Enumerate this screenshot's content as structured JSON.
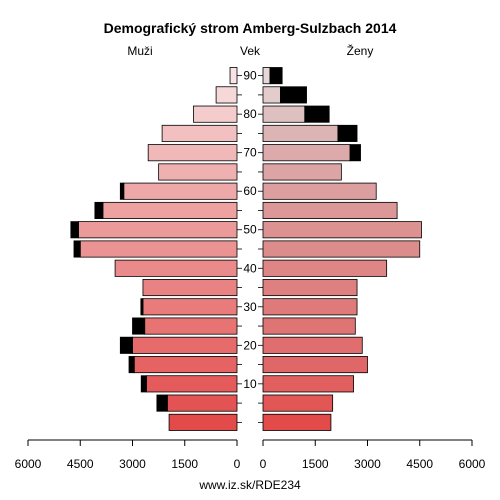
{
  "chart_data": {
    "type": "bar",
    "title": "Demografický strom Amberg-Sulzbach 2014",
    "left_label": "Muži",
    "center_label": "Vek",
    "right_label": "Ženy",
    "source": "www.iz.sk/RDE234",
    "xlim": [
      0,
      6000
    ],
    "x_ticks_left": [
      "6000",
      "4500",
      "3000",
      "1500",
      "0"
    ],
    "x_ticks_right": [
      "0",
      "1500",
      "3000",
      "4500",
      "6000"
    ],
    "x_tick_values": [
      6000,
      4500,
      3000,
      1500,
      0
    ],
    "age_labels": [
      "10",
      "20",
      "30",
      "40",
      "50",
      "60",
      "70",
      "80",
      "90"
    ],
    "age_groups_start": [
      0,
      5,
      10,
      15,
      20,
      25,
      30,
      35,
      40,
      45,
      50,
      55,
      60,
      65,
      70,
      75,
      80,
      85,
      90
    ],
    "males_base": [
      1950,
      2000,
      2600,
      2950,
      3000,
      2650,
      2700,
      2700,
      3500,
      4500,
      4550,
      3850,
      3250,
      2250,
      2550,
      2150,
      1250,
      600,
      200
    ],
    "males_extra": [
      0,
      300,
      150,
      150,
      350,
      350,
      60,
      0,
      0,
      180,
      220,
      230,
      100,
      0,
      0,
      0,
      0,
      0,
      0
    ],
    "females_base": [
      1950,
      2000,
      2600,
      3000,
      2850,
      2650,
      2700,
      2700,
      3550,
      4500,
      4550,
      3850,
      3250,
      2250,
      2500,
      2150,
      1200,
      500,
      200
    ],
    "females_extra": [
      0,
      0,
      0,
      0,
      0,
      0,
      0,
      0,
      0,
      0,
      0,
      0,
      0,
      0,
      300,
      550,
      700,
      750,
      350
    ],
    "extra_color": "#000000",
    "colors": [
      "#e34a4a",
      "#e45353",
      "#e55b5b",
      "#e66363",
      "#e76b6b",
      "#e87373",
      "#e97b7b",
      "#e98282",
      "#ea8a8a",
      "#eb9292",
      "#ec9999",
      "#eda1a1",
      "#eea8a8",
      "#efb0b0",
      "#f0b8b8",
      "#f2c0c0",
      "#f4cccc",
      "#f6d8d8",
      "#f8e4e4"
    ],
    "female_colors": [
      "#e34a4a",
      "#e25656",
      "#e15f5f",
      "#e06767",
      "#e06e6e",
      "#df7474",
      "#df7a7a",
      "#de8080",
      "#de8686",
      "#dd8c8c",
      "#dd9292",
      "#dc9898",
      "#dc9e9e",
      "#dca4a4",
      "#dcaaaa",
      "#ddb4b4",
      "#dfc0c0",
      "#e2cccc",
      "#e6d8d8"
    ]
  }
}
